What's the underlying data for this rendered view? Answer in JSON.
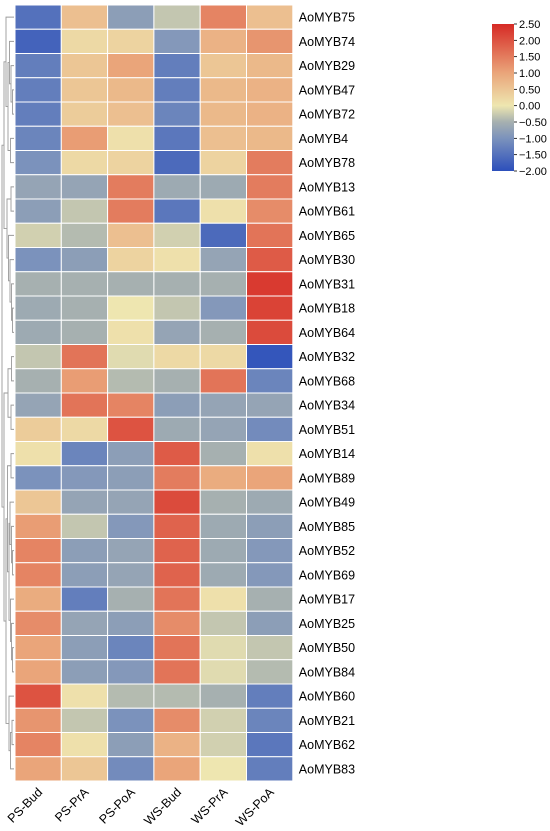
{
  "chart_data": {
    "type": "heatmap",
    "title": "",
    "xlabel": "",
    "ylabel": "",
    "columns": [
      "PS-Bud",
      "PS-PrA",
      "PS-PoA",
      "WS-Bud",
      "WS-PrA",
      "WS-PoA"
    ],
    "rows": [
      "AoMYB75",
      "AoMYB74",
      "AoMYB29",
      "AoMYB47",
      "AoMYB72",
      "AoMYB4",
      "AoMYB78",
      "AoMYB13",
      "AoMYB61",
      "AoMYB65",
      "AoMYB30",
      "AoMYB31",
      "AoMYB18",
      "AoMYB64",
      "AoMYB32",
      "AoMYB68",
      "AoMYB34",
      "AoMYB51",
      "AoMYB14",
      "AoMYB89",
      "AoMYB49",
      "AoMYB85",
      "AoMYB52",
      "AoMYB69",
      "AoMYB17",
      "AoMYB25",
      "AoMYB50",
      "AoMYB84",
      "AoMYB60",
      "AoMYB21",
      "AoMYB62",
      "AoMYB83"
    ],
    "values": [
      [
        -1.5,
        0.6,
        -0.8,
        -0.3,
        1.4,
        0.6
      ],
      [
        -1.7,
        0.2,
        0.3,
        -0.9,
        0.8,
        1.2
      ],
      [
        -1.3,
        0.5,
        1.0,
        -1.3,
        0.5,
        0.7
      ],
      [
        -1.3,
        0.5,
        0.7,
        -1.3,
        0.7,
        0.8
      ],
      [
        -1.3,
        0.4,
        0.6,
        -1.2,
        0.7,
        0.8
      ],
      [
        -1.2,
        1.1,
        0.1,
        -1.4,
        0.6,
        0.7
      ],
      [
        -1.0,
        0.2,
        0.3,
        -1.6,
        0.3,
        1.5
      ],
      [
        -0.7,
        -0.7,
        1.5,
        -0.6,
        -0.6,
        1.5
      ],
      [
        -0.8,
        -0.3,
        1.5,
        -1.4,
        0.1,
        1.3
      ],
      [
        -0.2,
        -0.4,
        0.6,
        -0.2,
        -1.6,
        1.6
      ],
      [
        -1.0,
        -0.8,
        0.3,
        0.1,
        -0.7,
        1.9
      ],
      [
        -0.5,
        -0.5,
        -0.5,
        -0.5,
        -0.5,
        2.3
      ],
      [
        -0.6,
        -0.5,
        0.0,
        -0.3,
        -0.9,
        2.2
      ],
      [
        -0.6,
        -0.5,
        0.1,
        -0.7,
        -0.5,
        2.1
      ],
      [
        -0.3,
        1.6,
        -0.1,
        0.2,
        0.2,
        -1.9
      ],
      [
        -0.5,
        1.1,
        -0.4,
        -0.5,
        1.6,
        -1.2
      ],
      [
        -0.7,
        1.6,
        1.4,
        -0.8,
        -0.7,
        -0.7
      ],
      [
        0.4,
        0.2,
        2.0,
        -0.6,
        -0.7,
        -1.1
      ],
      [
        0.1,
        -1.2,
        -0.8,
        1.9,
        -0.5,
        0.1
      ],
      [
        -1.0,
        -0.9,
        -0.8,
        1.5,
        0.9,
        1.0
      ],
      [
        0.5,
        -0.7,
        -0.7,
        2.1,
        -0.5,
        -0.6
      ],
      [
        1.1,
        -0.3,
        -0.9,
        1.8,
        -0.6,
        -0.8
      ],
      [
        1.4,
        -0.8,
        -0.7,
        1.8,
        -0.6,
        -0.9
      ],
      [
        1.4,
        -0.8,
        -0.7,
        1.8,
        -0.6,
        -0.9
      ],
      [
        0.9,
        -1.3,
        -0.5,
        1.6,
        0.1,
        -0.5
      ],
      [
        1.3,
        -0.7,
        -0.8,
        1.3,
        -0.3,
        -0.8
      ],
      [
        1.0,
        -0.8,
        -1.2,
        1.6,
        -0.1,
        -0.3
      ],
      [
        1.0,
        -0.8,
        -0.9,
        1.6,
        -0.1,
        -0.4
      ],
      [
        2.0,
        0.1,
        -0.4,
        -0.4,
        -0.5,
        -1.3
      ],
      [
        1.2,
        -0.3,
        -1.0,
        1.3,
        -0.2,
        -1.2
      ],
      [
        1.4,
        0.1,
        -0.8,
        0.8,
        -0.2,
        -1.4
      ],
      [
        1.0,
        0.5,
        -1.1,
        1.0,
        0.0,
        -1.3
      ]
    ],
    "color_scale": {
      "range": [
        -2.0,
        2.5
      ],
      "ticks": [
        {
          "v": 2.5,
          "label": "2.50"
        },
        {
          "v": 2.0,
          "label": "2.00"
        },
        {
          "v": 1.5,
          "label": "1.50"
        },
        {
          "v": 1.0,
          "label": "1.00"
        },
        {
          "v": 0.5,
          "label": "0.50"
        },
        {
          "v": 0.0,
          "label": "0.00"
        },
        {
          "v": -0.5,
          "label": "−0.50"
        },
        {
          "v": -1.0,
          "label": "−1.00"
        },
        {
          "v": -1.5,
          "label": "−1.50"
        },
        {
          "v": -2.0,
          "label": "−2.00"
        }
      ],
      "stops": [
        {
          "v": -2.0,
          "color": "#2c4fbb"
        },
        {
          "v": -1.0,
          "color": "#7b92bc"
        },
        {
          "v": -0.5,
          "color": "#a6b0b0"
        },
        {
          "v": 0.0,
          "color": "#eee6b0"
        },
        {
          "v": 1.0,
          "color": "#eaa57a"
        },
        {
          "v": 2.5,
          "color": "#d62a25"
        }
      ]
    },
    "legend_position": "top-right",
    "row_dendrogram": "left"
  }
}
